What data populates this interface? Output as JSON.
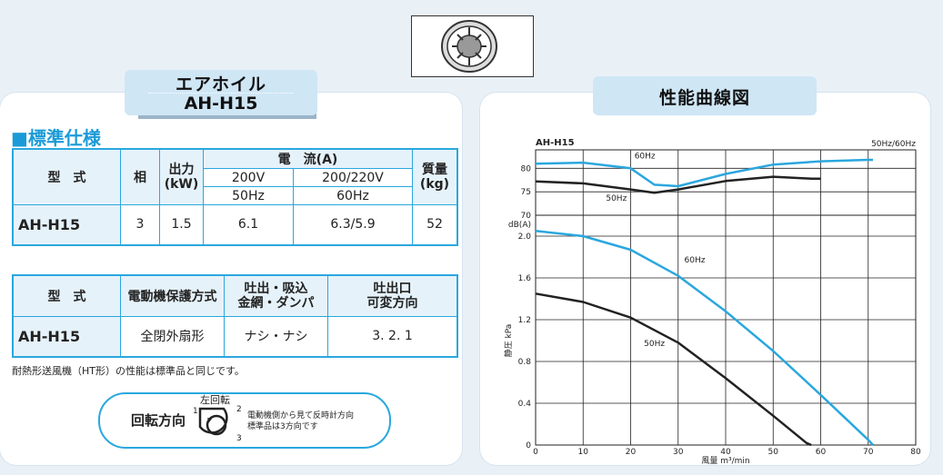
{
  "header": {
    "title_line1": "エアホイル",
    "title_line2": "AH-H15",
    "chart_tab": "性能曲線図"
  },
  "spec": {
    "section_title": "■標準仕様",
    "table1": {
      "h_model": "型　式",
      "h_phase": "相",
      "h_output": "出力\n(kW)",
      "h_current": "電　流(A)",
      "h_v1": "200V",
      "h_v2": "200/220V",
      "h_f1": "50Hz",
      "h_f2": "60Hz",
      "h_mass": "質量\n(kg)",
      "model": "AH-H15",
      "phase": "3",
      "output": "1.5",
      "current_50": "6.1",
      "current_60": "6.3/5.9",
      "mass": "52"
    },
    "table2": {
      "h_model": "型　式",
      "h_protection": "電動機保護方式",
      "h_mesh": "吐出・吸込\n金網・ダンパ",
      "h_direction": "吐出口\n可変方向",
      "model": "AH-H15",
      "protection": "全閉外扇形",
      "mesh": "ナシ・ナシ",
      "direction": "3. 2. 1"
    },
    "note": "耐熱形送風機（HT形）の性能は標準品と同じです。",
    "rotation": {
      "label": "回転方向",
      "dir_label": "左回転",
      "n1": "1",
      "n2": "2",
      "n3": "3",
      "desc1": "電動機側から見て反時計方向",
      "desc2": "標準品は3方向です"
    }
  },
  "chart_data": {
    "type": "line",
    "title": "AH-H15",
    "corner_label": "50Hz/60Hz",
    "xlabel": "風量 m³/min",
    "x_ticks": [
      0,
      10,
      20,
      30,
      40,
      50,
      60,
      70,
      80
    ],
    "xlim": [
      0,
      80
    ],
    "pressure": {
      "ylabel": "静圧 kPa",
      "ylim": [
        0,
        2.2
      ],
      "y_ticks": [
        "0",
        "0.4",
        "0.8",
        "1.2",
        "1.6",
        "2.0"
      ],
      "y_tick_values": [
        0,
        0.4,
        0.8,
        1.2,
        1.6,
        2.0
      ],
      "series": [
        {
          "name": "60Hz",
          "color": "#2aa7de",
          "x": [
            0,
            10,
            20,
            30,
            40,
            50,
            60,
            70,
            71
          ],
          "y": [
            2.05,
            2.0,
            1.87,
            1.62,
            1.28,
            0.9,
            0.48,
            0.05,
            0.0
          ]
        },
        {
          "name": "50Hz",
          "color": "#222222",
          "x": [
            0,
            10,
            20,
            30,
            40,
            50,
            57,
            58
          ],
          "y": [
            1.45,
            1.37,
            1.22,
            0.98,
            0.64,
            0.28,
            0.02,
            0.0
          ]
        }
      ]
    },
    "noise": {
      "ylabel": "dB(A)",
      "ylim": [
        70,
        82
      ],
      "y_ticks": [
        "70",
        "75",
        "80"
      ],
      "y_tick_values": [
        70,
        75,
        80
      ],
      "series": [
        {
          "name": "60Hz",
          "color": "#2aa7de",
          "x": [
            0,
            10,
            20,
            25,
            30,
            40,
            50,
            60,
            70,
            71
          ],
          "y": [
            81,
            81.2,
            80,
            76.5,
            76.2,
            78.8,
            80.8,
            81.5,
            81.8,
            81.8
          ]
        },
        {
          "name": "50Hz",
          "color": "#222222",
          "x": [
            0,
            10,
            20,
            25,
            30,
            40,
            50,
            58,
            60
          ],
          "y": [
            77.2,
            76.8,
            75.5,
            74.8,
            75.5,
            77.3,
            78.2,
            77.8,
            77.8
          ]
        }
      ]
    }
  }
}
